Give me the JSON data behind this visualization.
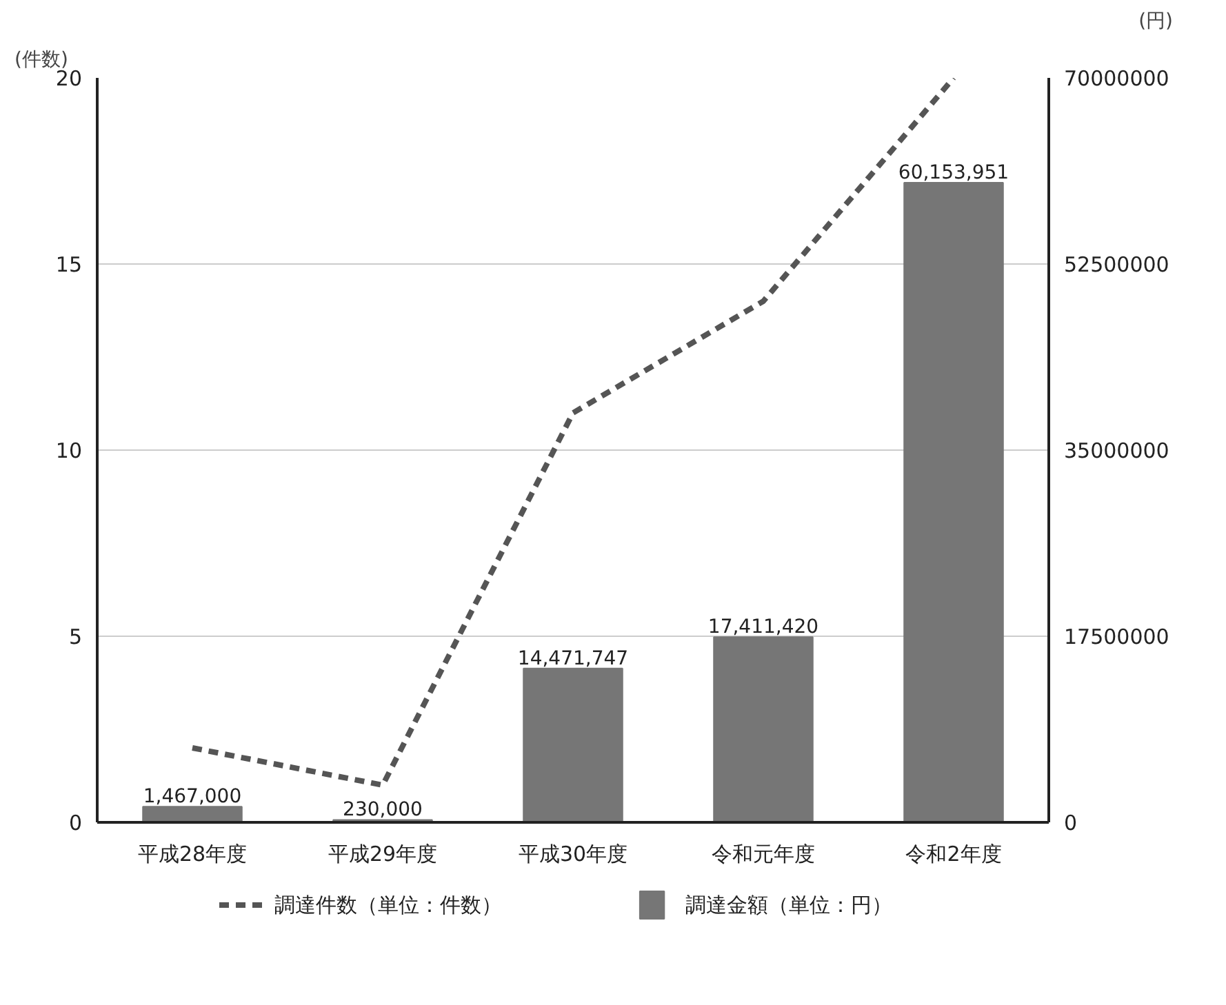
{
  "chart_data": {
    "type": "bar",
    "ylabel": "(件数)",
    "y2label": "(円)",
    "categories": [
      "平成28年度",
      "平成29年度",
      "平成30年度",
      "令和元年度",
      "令和2年度"
    ],
    "series": [
      {
        "name": "調達件数（単位：件数）",
        "type": "line",
        "color": "#555555",
        "line_style": "dashed",
        "values": [
          2,
          1,
          11,
          14,
          20
        ]
      },
      {
        "name": "調達金額（単位：円）",
        "axis": "y2",
        "color": "#767676",
        "values": [
          1467000,
          230000,
          14471747,
          17411420,
          60153951
        ],
        "value_labels": [
          "1,467,000",
          "230,000",
          "14,471,747",
          "17,411,420",
          "60,153,951"
        ]
      }
    ],
    "ylim": [
      0,
      20
    ],
    "yticks": [
      0,
      5,
      10,
      15,
      20
    ],
    "y2lim": [
      0,
      70000000
    ],
    "y2ticks": [
      0,
      17500000,
      35000000,
      52500000,
      70000000
    ],
    "grid": "y",
    "legend": "bottom"
  }
}
